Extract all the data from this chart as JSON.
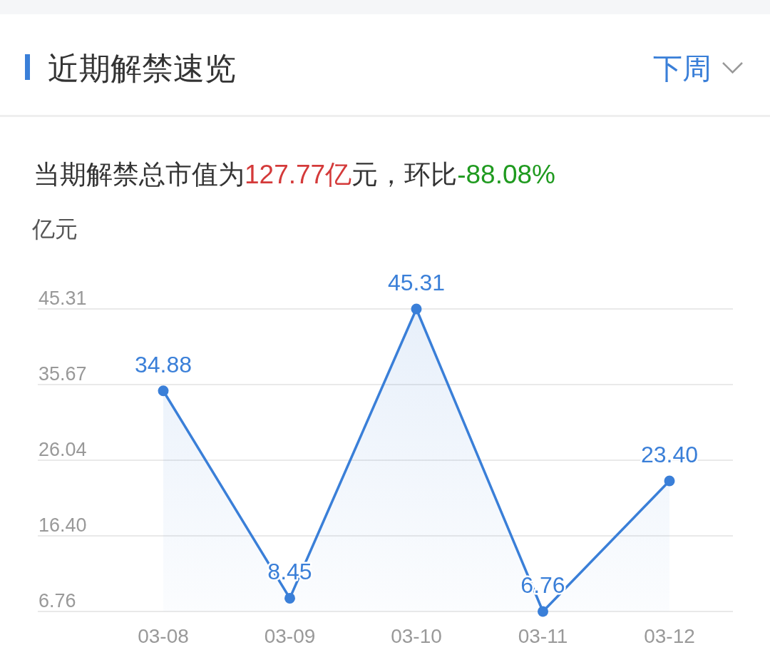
{
  "chart_data": {
    "type": "area",
    "title": "近期解禁速览",
    "subtitle": "当期解禁总市值为127.77亿元，环比-88.08%",
    "ylabel": "亿元",
    "annotations": [
      "下周"
    ],
    "categories": [
      "03-08",
      "03-09",
      "03-10",
      "03-11",
      "03-12"
    ],
    "values": [
      34.88,
      8.45,
      45.31,
      6.76,
      23.4
    ],
    "value_labels": [
      "34.88",
      "8.45",
      "45.31",
      "6.76",
      "23.40"
    ],
    "color": "#3a7fd8",
    "ylim": [
      6.76,
      45.31
    ],
    "yticks": [
      6.76,
      {
        "value": 16.4,
        "label": "16.40"
      },
      26.04,
      35.67,
      45.31
    ],
    "grid": "y",
    "marker": "circle"
  }
}
